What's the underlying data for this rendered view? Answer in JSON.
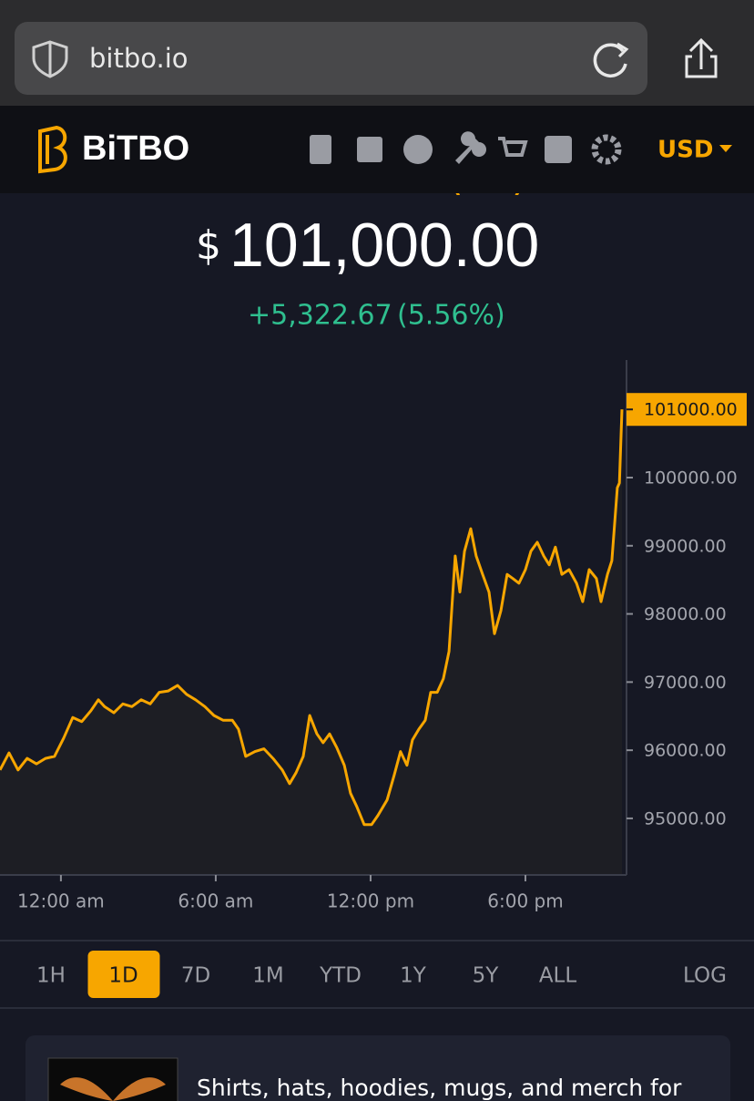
{
  "browser": {
    "url": "bitbo.io"
  },
  "header": {
    "logo": "BiTBO",
    "currency": "USD"
  },
  "price": {
    "heading": "Bitcoin Live Price (USD)",
    "symbol": "$",
    "value": "101,000.00",
    "change": "+5,322.67",
    "change_pct": "(5.56%)"
  },
  "chart_data": {
    "type": "line",
    "color": "#f7a600",
    "x": [
      -2.36,
      -2.01,
      -1.66,
      -1.31,
      -0.95,
      -0.6,
      -0.25,
      0.11,
      0.46,
      0.81,
      1.16,
      1.45,
      1.69,
      2.05,
      2.4,
      2.75,
      3.11,
      3.46,
      3.81,
      4.16,
      4.52,
      4.87,
      5.22,
      5.58,
      5.93,
      6.28,
      6.64,
      6.88,
      7.16,
      7.52,
      7.87,
      8.22,
      8.58,
      8.86,
      9.11,
      9.39,
      9.64,
      9.92,
      10.16,
      10.41,
      10.69,
      10.98,
      11.22,
      11.47,
      11.75,
      12.04,
      12.28,
      12.64,
      12.92,
      13.16,
      13.41,
      13.62,
      13.87,
      14.12,
      14.33,
      14.58,
      14.82,
      15.04,
      15.28,
      15.46,
      15.64,
      15.88,
      16.09,
      16.34,
      16.59,
      16.8,
      17.05,
      17.29,
      17.51,
      17.75,
      18.0,
      18.21,
      18.46,
      18.71,
      18.92,
      19.16,
      19.41,
      19.69,
      19.98,
      20.22,
      20.47,
      20.75,
      20.93,
      21.18,
      21.35,
      21.56,
      21.64,
      21.74
    ],
    "values": [
      95710,
      95960,
      95710,
      95880,
      95800,
      95880,
      95910,
      96180,
      96480,
      96420,
      96580,
      96740,
      96640,
      96550,
      96680,
      96640,
      96740,
      96680,
      96850,
      96870,
      96950,
      96820,
      96740,
      96640,
      96510,
      96440,
      96440,
      96310,
      95910,
      95980,
      96020,
      95880,
      95710,
      95510,
      95670,
      95910,
      96510,
      96240,
      96110,
      96240,
      96040,
      95780,
      95370,
      95170,
      94910,
      94910,
      95040,
      95270,
      95640,
      95980,
      95780,
      96150,
      96310,
      96440,
      96850,
      96850,
      97050,
      97450,
      98850,
      98320,
      98920,
      99250,
      98850,
      98580,
      98320,
      97710,
      98050,
      98580,
      98520,
      98450,
      98650,
      98920,
      99050,
      98850,
      98720,
      98980,
      98580,
      98650,
      98450,
      98180,
      98650,
      98520,
      98180,
      98580,
      98780,
      99850,
      99920,
      101000
    ],
    "xlim": [
      -2.36,
      21.74
    ],
    "ylim": [
      94170,
      101725
    ],
    "xticks": [
      {
        "value": 0,
        "label": "12:00 am"
      },
      {
        "value": 6,
        "label": "6:00 am"
      },
      {
        "value": 12,
        "label": "12:00 pm"
      },
      {
        "value": 18,
        "label": "6:00 pm"
      }
    ],
    "yticks": [
      {
        "value": 95000,
        "label": "95000.00"
      },
      {
        "value": 96000,
        "label": "96000.00"
      },
      {
        "value": 97000,
        "label": "97000.00"
      },
      {
        "value": 98000,
        "label": "98000.00"
      },
      {
        "value": 99000,
        "label": "99000.00"
      },
      {
        "value": 100000,
        "label": "100000.00"
      }
    ],
    "last_price": {
      "value": 101000,
      "label": "101000.00"
    }
  },
  "ranges": {
    "options": [
      "1H",
      "1D",
      "7D",
      "1M",
      "YTD",
      "1Y",
      "5Y",
      "ALL"
    ],
    "selected": "1D",
    "log": "LOG"
  },
  "promo": {
    "text": "Shirts, hats, hoodies, mugs, and merch for"
  }
}
